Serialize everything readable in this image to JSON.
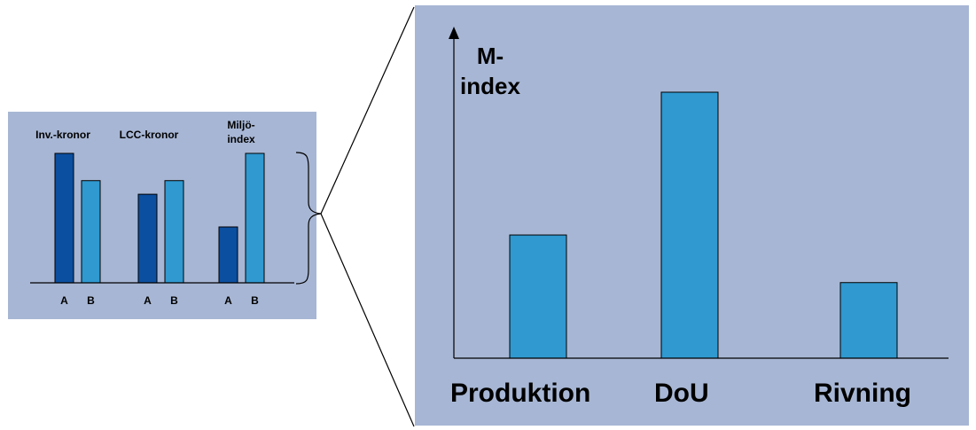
{
  "colors": {
    "panel_bg": "#a7b6d4",
    "bar_a": "#0b4fa0",
    "bar_b": "#2f99d0",
    "stroke": "#000000"
  },
  "chart_data": [
    {
      "type": "bar",
      "categories": [
        "Inv.-kronor",
        "LCC-kronor",
        "Miljö-index"
      ],
      "category_label_lines": [
        [
          "Inv.-kronor"
        ],
        [
          "LCC-kronor"
        ],
        [
          "Miljö-",
          "index"
        ]
      ],
      "group_tick_labels": [
        "A",
        "B"
      ],
      "series": [
        {
          "name": "A",
          "values": [
            95,
            65,
            41
          ]
        },
        {
          "name": "B",
          "values": [
            75,
            75,
            95
          ]
        }
      ],
      "ylim": [
        0,
        100
      ],
      "xlabel": "",
      "ylabel": "",
      "grid": false
    },
    {
      "type": "bar",
      "categories": [
        "Produktion",
        "DoU",
        "Rivning"
      ],
      "values": [
        44,
        95,
        27
      ],
      "ylabel_lines": [
        "M-",
        "index"
      ],
      "ylim": [
        0,
        100
      ],
      "xlabel": "",
      "grid": false
    }
  ]
}
